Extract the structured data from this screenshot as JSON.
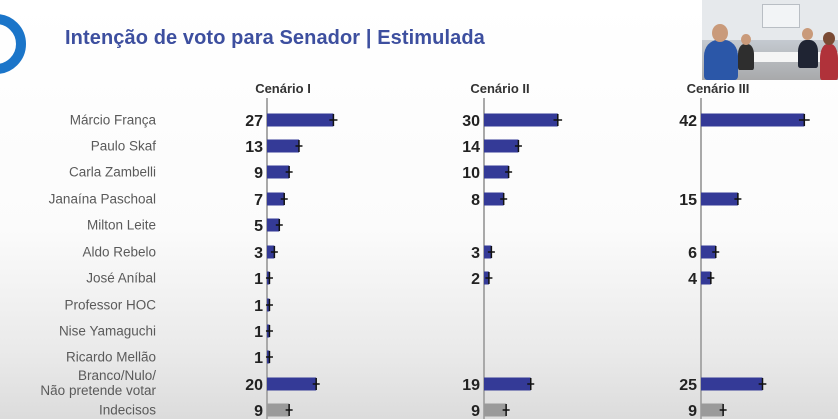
{
  "title": "Intenção de voto para Senador | Estimulada",
  "chart_data": {
    "type": "bar",
    "orientation": "horizontal",
    "categories": [
      "Márcio França",
      "Paulo Skaf",
      "Carla Zambelli",
      "Janaína Paschoal",
      "Milton Leite",
      "Aldo Rebelo",
      "José Aníbal",
      "Professor HOC",
      "Nise Yamaguchi",
      "Ricardo Mellão",
      "Branco/Nulo/\nNão pretende votar",
      "Indecisos"
    ],
    "series": [
      {
        "name": "Cenário I",
        "values": [
          27,
          13,
          9,
          7,
          5,
          3,
          1,
          1,
          1,
          1,
          20,
          9
        ]
      },
      {
        "name": "Cenário II",
        "values": [
          30,
          14,
          10,
          8,
          null,
          3,
          2,
          null,
          null,
          null,
          19,
          9
        ]
      },
      {
        "name": "Cenário III",
        "values": [
          42,
          null,
          null,
          15,
          null,
          6,
          4,
          null,
          null,
          null,
          25,
          9
        ]
      }
    ],
    "error_bars": true,
    "colors": {
      "bar": "#343a97",
      "indecisos": "#9a9a9a",
      "axis": "#a9a9a9",
      "error": "#111111"
    }
  },
  "colors": {
    "title": "#3d4f9f",
    "logo": "#1b75c9"
  }
}
